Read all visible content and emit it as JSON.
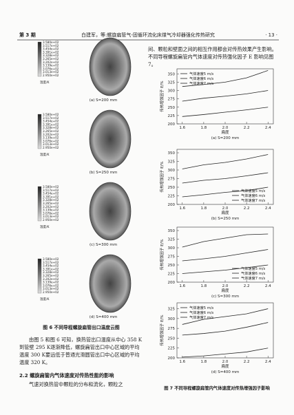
{
  "header": {
    "issue": "第 3 期",
    "title": "白建军，等:螺旋扁管气-固循环流化床煤气冷却器强化传热研究",
    "page": "· 13 ·"
  },
  "figure6": {
    "legend_labels": [
      "3.580e+02",
      "3.517e+02",
      "3.454e+02",
      "3.391e+02",
      "3.328e+02",
      "3.265e+02",
      "3.202e+02",
      "3.139e+02",
      "3.076e+02",
      "3.013e+02",
      "2.950e+02"
    ],
    "legend_unit": "温度/K",
    "panels": [
      "(a) S=200 mm",
      "(b) S=250 mm",
      "(c) S=300 mm",
      "(d) S=400 mm"
    ],
    "caption": "图 6 不同导程螺旋扁管出口温度云图"
  },
  "text": {
    "right_intro": "间、颗粒和壁面之间的相互作用都会对传热效果产生影响。不同导程螺旋扁管内气体速度对传热强化因子 E 影响见图 7。",
    "left_para": "由图 5 和图 6 可知，换热管出口温度从中心 358 K 到管壁 295 K逐渐降低，螺旋扁管出口中心区域的平均温度 300 K要远低于普通光滑圆管出口中心区域的平均温度 320 K。",
    "section": "2.2  螺旋扁管内气体速度对传热性能的影响",
    "left_tail": "气速对换热管中颗粒的分布和流化，颗粒之"
  },
  "figure7_caption": "图 7 不同导程螺旋扁管内气体速度对传热增强因子影响",
  "chart_data": [
    {
      "type": "line",
      "subtitle": "(a) S=200 mm",
      "xlabel": "扁度",
      "ylabel": "传热增强因子 E/%",
      "x": [
        1.6,
        1.8,
        2.0,
        2.2,
        2.4
      ],
      "xlim": [
        1.55,
        2.45
      ],
      "xticks": [
        1.6,
        1.8,
        {
          "value": 2,
          "label": "2.0"
        },
        2.2,
        2.4
      ],
      "ylim": [
        200,
        365
      ],
      "yticks": [
        200,
        225,
        250,
        275,
        300,
        325,
        350
      ],
      "legend": "upper left",
      "series": [
        {
          "name": "气体速度5 m/s",
          "color": "#222",
          "values": [
            222,
            228,
            235,
            242,
            250
          ]
        },
        {
          "name": "气体速度6 m/s",
          "color": "#222",
          "values": [
            268,
            277,
            283,
            290,
            300
          ]
        },
        {
          "name": "气体速度7 m/s",
          "color": "#222",
          "values": [
            312,
            318,
            325,
            338,
            360
          ]
        }
      ]
    },
    {
      "type": "line",
      "subtitle": "(b) S=250 mm",
      "xlabel": "扁度",
      "ylabel": "传热增强因子 E/%",
      "x": [
        1.6,
        1.8,
        2.0,
        2.2,
        2.4
      ],
      "xlim": [
        1.55,
        2.45
      ],
      "xticks": [
        1.6,
        1.8,
        {
          "value": 2,
          "label": "2.0"
        },
        2.2,
        2.4
      ],
      "ylim": [
        200,
        360
      ],
      "yticks": [
        200,
        225,
        250,
        275,
        300,
        325,
        350
      ],
      "legend": "lower right",
      "series": [
        {
          "name": "气体速度5 m/s",
          "color": "#222",
          "values": [
            222,
            228,
            235,
            240,
            250
          ]
        },
        {
          "name": "气体速度6 m/s",
          "color": "#222",
          "values": [
            262,
            270,
            275,
            283,
            292
          ]
        },
        {
          "name": "气体速度7 m/s",
          "color": "#222",
          "values": [
            303,
            315,
            322,
            332,
            345
          ]
        }
      ]
    },
    {
      "type": "line",
      "subtitle": "(c) S=300 mm",
      "xlabel": "扁度",
      "ylabel": "传热增强因子 E/%",
      "x": [
        1.6,
        1.8,
        2.0,
        2.2,
        2.4
      ],
      "xlim": [
        1.55,
        2.45
      ],
      "xticks": [
        1.6,
        1.8,
        {
          "value": 2,
          "label": "2.0"
        },
        2.2,
        2.4
      ],
      "ylim": [
        200,
        360
      ],
      "yticks": [
        200,
        225,
        250,
        275,
        300,
        325,
        350
      ],
      "legend": "lower right",
      "series": [
        {
          "name": "气体速度5 m/s",
          "color": "#222",
          "values": [
            225,
            230,
            235,
            242,
            250
          ]
        },
        {
          "name": "气体速度6 m/s",
          "color": "#222",
          "values": [
            262,
            268,
            275,
            285,
            295
          ]
        },
        {
          "name": "气体速度7 m/s",
          "color": "#222",
          "values": [
            302,
            318,
            328,
            338,
            340
          ]
        }
      ]
    },
    {
      "type": "line",
      "subtitle": "(d) S=400 mm",
      "xlabel": "扁度",
      "ylabel": "传热增强因子 E/%",
      "x": [
        1.6,
        1.8,
        2.0,
        2.2,
        2.4
      ],
      "xlim": [
        1.55,
        2.45
      ],
      "xticks": [
        1.6,
        1.8,
        {
          "value": 2,
          "label": "2.0"
        },
        2.2,
        2.4
      ],
      "ylim": [
        200,
        340
      ],
      "yticks": [
        200,
        225,
        250,
        275,
        300,
        325
      ],
      "legend": "upper left",
      "series": [
        {
          "name": "气体速度5 m/s",
          "color": "#222",
          "values": [
            202,
            205,
            210,
            215,
            225
          ]
        },
        {
          "name": "气体速度6 m/s",
          "color": "#222",
          "values": [
            258,
            262,
            268,
            278,
            290
          ]
        },
        {
          "name": "气体速度7 m/s",
          "color": "#222",
          "values": [
            285,
            298,
            305,
            312,
            325
          ]
        }
      ]
    }
  ]
}
